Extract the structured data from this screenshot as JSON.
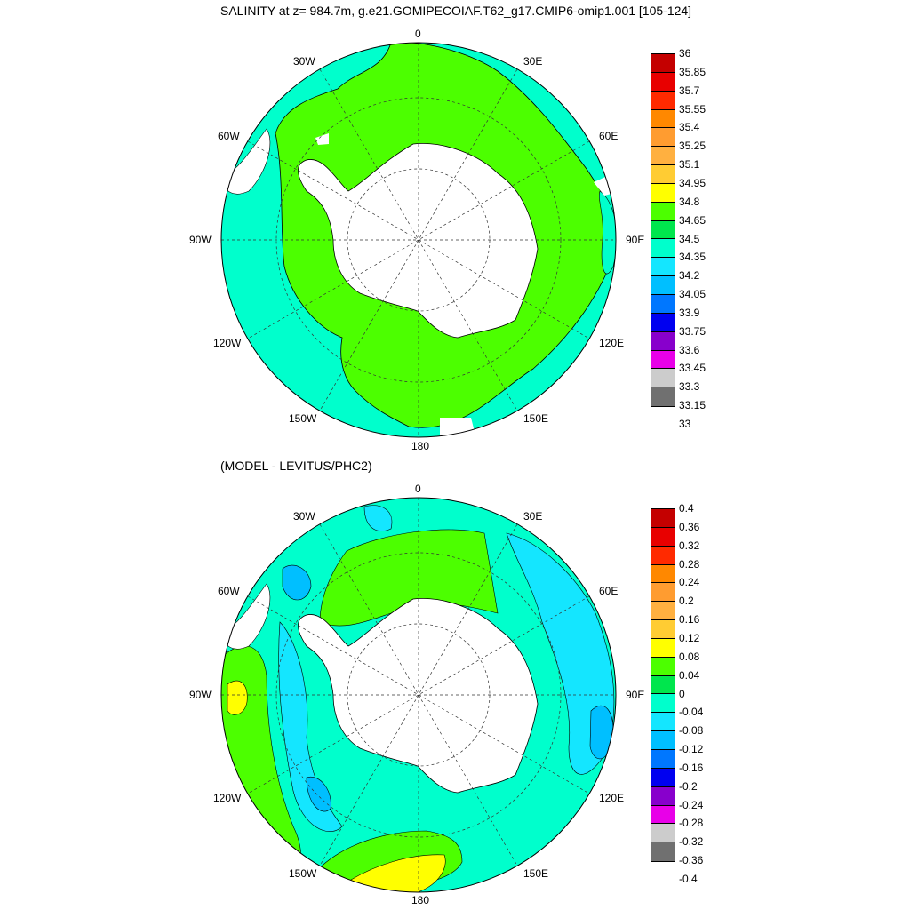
{
  "titles": {
    "top": "SALINITY at z= 984.7m, g.e21.GOMIPECOIAF.T62_g17.CMIP6-omip1.001 [105-124]",
    "bottom": "(MODEL - LEVITUS/PHC2)"
  },
  "longitude_labels": {
    "lab_0": "0",
    "lab_30e": "30E",
    "lab_60e": "60E",
    "lab_90e": "90E",
    "lab_120e": "120E",
    "lab_150e": "150E",
    "lab_180": "180",
    "lab_150w": "150W",
    "lab_120w": "120W",
    "lab_90w": "90W",
    "lab_60w": "60W",
    "lab_30w": "30W"
  },
  "colorbar_top": {
    "labels": [
      "36",
      "35.85",
      "35.7",
      "35.55",
      "35.4",
      "35.25",
      "35.1",
      "34.95",
      "34.8",
      "34.65",
      "34.5",
      "34.35",
      "34.2",
      "34.05",
      "33.9",
      "33.75",
      "33.6",
      "33.45",
      "33.3",
      "33.15",
      "33"
    ],
    "colors": [
      "#c40000",
      "#e80000",
      "#ff2a00",
      "#ff8800",
      "#ff9c30",
      "#ffb040",
      "#ffcc33",
      "#ffff00",
      "#4cff00",
      "#00e64d",
      "#00ffcc",
      "#14e6ff",
      "#00bfff",
      "#0077ff",
      "#0000f0",
      "#8800cc",
      "#e800e8",
      "#cccccc",
      "#707070"
    ]
  },
  "colorbar_bottom": {
    "labels": [
      "0.4",
      "0.36",
      "0.32",
      "0.28",
      "0.24",
      "0.2",
      "0.16",
      "0.12",
      "0.08",
      "0.04",
      "0",
      "-0.04",
      "-0.08",
      "-0.12",
      "-0.16",
      "-0.2",
      "-0.24",
      "-0.28",
      "-0.32",
      "-0.36",
      "-0.4"
    ],
    "colors": [
      "#c40000",
      "#e80000",
      "#ff2a00",
      "#ff8800",
      "#ff9c30",
      "#ffb040",
      "#ffcc33",
      "#ffff00",
      "#4cff00",
      "#00e64d",
      "#00ffcc",
      "#14e6ff",
      "#00bfff",
      "#0077ff",
      "#0000f0",
      "#8800cc",
      "#e800e8",
      "#cccccc",
      "#707070"
    ]
  },
  "map_colors": {
    "green_band": "#4cff00",
    "teal": "#00ffcc",
    "light_blue": "#14e6ff",
    "sky": "#00bfff",
    "yellow": "#ffff00",
    "land": "#ffffff"
  }
}
